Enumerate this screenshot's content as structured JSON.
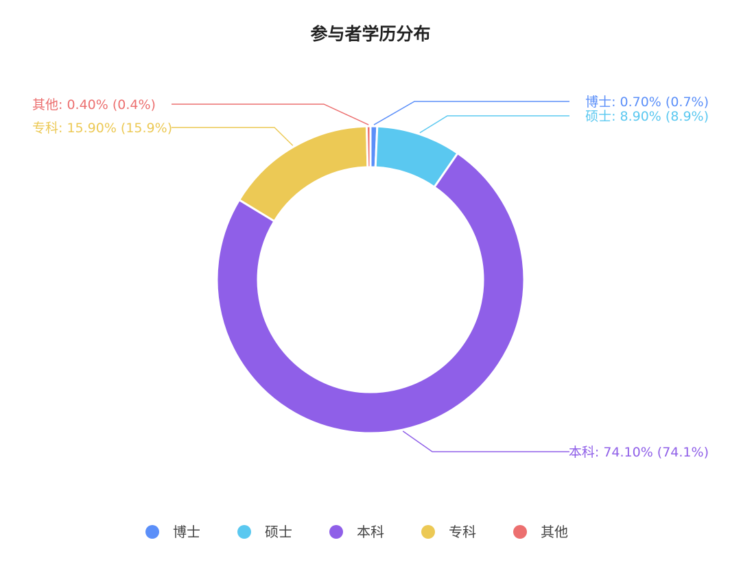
{
  "chart_data": {
    "type": "pie",
    "variant": "donut",
    "title": "参与者学历分布",
    "categories": [
      "博士",
      "硕士",
      "本科",
      "专科",
      "其他"
    ],
    "values": [
      0.7,
      8.9,
      74.1,
      15.9,
      0.4
    ],
    "labels": [
      "博士: 0.70% (0.7%)",
      "硕士: 8.90% (8.9%)",
      "本科: 74.10% (74.1%)",
      "专科: 15.90% (15.9%)",
      "其他: 0.40% (0.4%)"
    ],
    "colors": [
      "#5b8ff9",
      "#5ac8f0",
      "#8f5fe8",
      "#ecc955",
      "#ec6f6f"
    ],
    "legend": {
      "position": "bottom",
      "items": [
        "博士",
        "硕士",
        "本科",
        "专科",
        "其他"
      ]
    }
  }
}
